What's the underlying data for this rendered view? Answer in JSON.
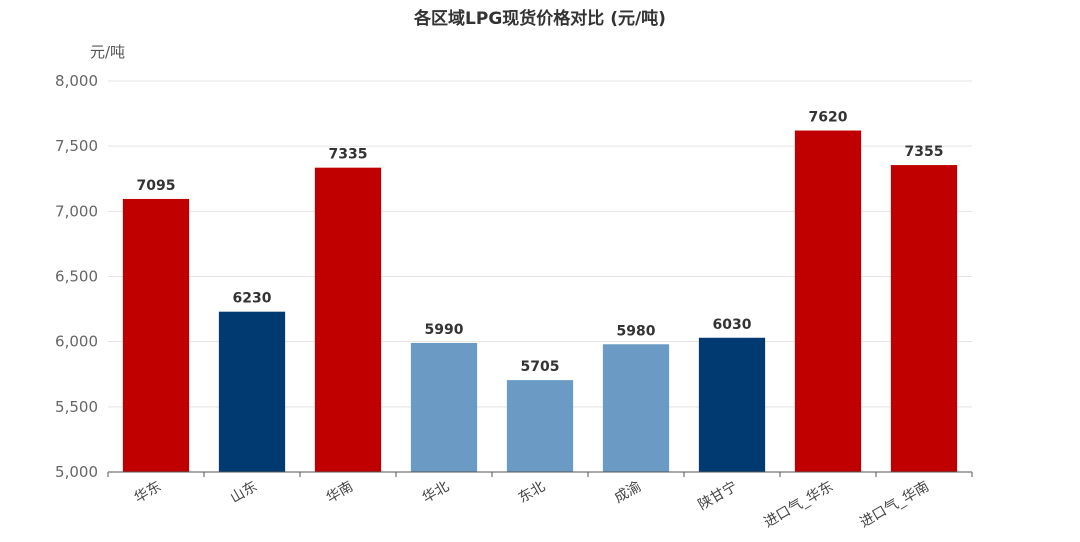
{
  "chart_data": {
    "type": "bar",
    "title": "各区域LPG现货价格对比 (元/吨)",
    "ylabel": "元/吨",
    "xlabel": "",
    "ylim": [
      5000,
      8000
    ],
    "yticks": [
      "5,000",
      "5,500",
      "6,000",
      "6,500",
      "7,000",
      "7,500",
      "8,000"
    ],
    "ytick_values": [
      5000,
      5500,
      6000,
      6500,
      7000,
      7500,
      8000
    ],
    "grid": true,
    "legend": "none",
    "categories": [
      "华东",
      "山东",
      "华南",
      "华北",
      "东北",
      "成渝",
      "陕甘宁",
      "进口气_华东",
      "进口气_华南"
    ],
    "values": [
      7095,
      6230,
      7335,
      5990,
      5705,
      5980,
      6030,
      7620,
      7355
    ],
    "value_labels": [
      "7095",
      "6230",
      "7335",
      "5990",
      "5705",
      "5980",
      "6030",
      "7620",
      "7355"
    ],
    "colors": [
      "#c00000",
      "#003a70",
      "#c00000",
      "#6b9bc5",
      "#6b9bc5",
      "#6b9bc5",
      "#003a70",
      "#c00000",
      "#c00000"
    ]
  }
}
